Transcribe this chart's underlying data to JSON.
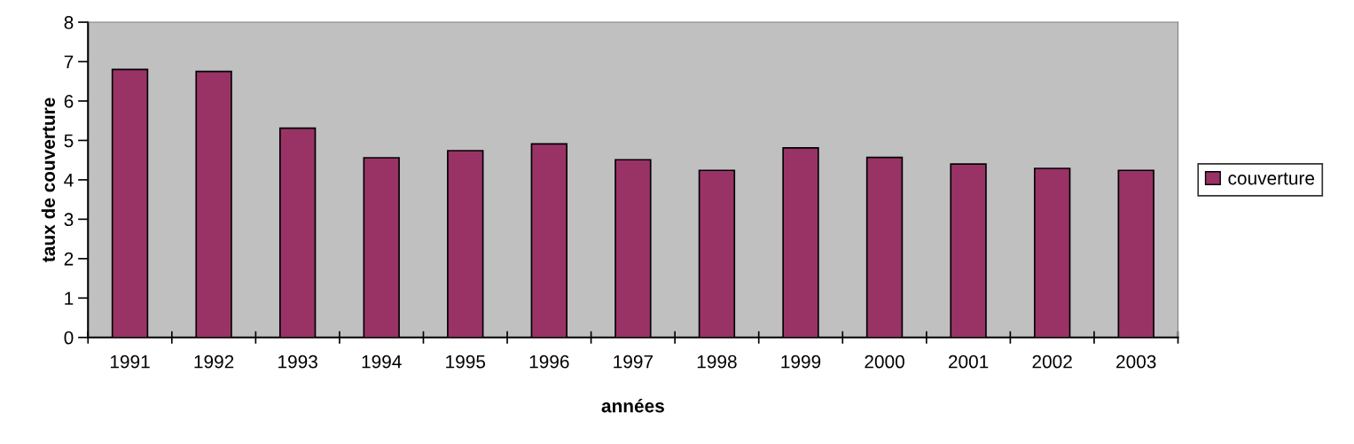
{
  "chart_data": {
    "type": "bar",
    "xlabel": "années",
    "ylabel": "taux de couverture",
    "categories": [
      "1991",
      "1992",
      "1993",
      "1994",
      "1995",
      "1996",
      "1997",
      "1998",
      "1999",
      "2000",
      "2001",
      "2002",
      "2003"
    ],
    "series": [
      {
        "name": "couverture",
        "color": "#993366",
        "values": [
          6.8,
          6.75,
          5.31,
          4.56,
          4.74,
          4.91,
          4.51,
          4.24,
          4.81,
          4.57,
          4.4,
          4.29,
          4.24
        ]
      }
    ],
    "ylim": [
      0,
      8
    ],
    "yticks": [
      0,
      1,
      2,
      3,
      4,
      5,
      6,
      7,
      8
    ],
    "grid": false,
    "legend": "right"
  }
}
